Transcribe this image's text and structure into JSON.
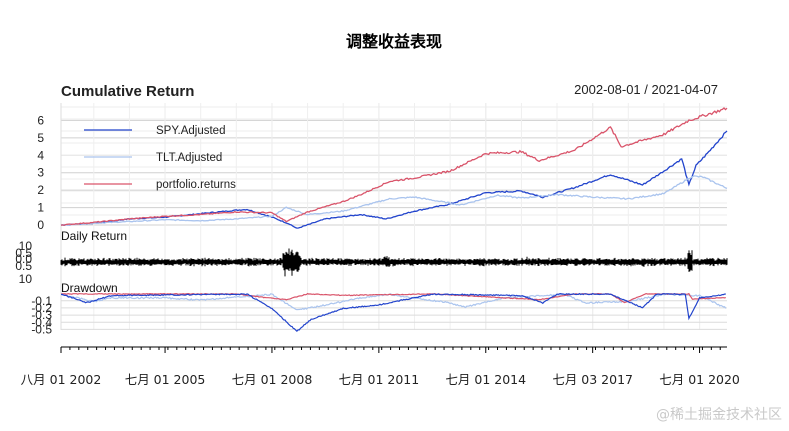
{
  "chart_data": {
    "type": "line",
    "title": "调整收益表现",
    "date_range": "2002-08-01 / 2021-04-07",
    "x_tick_labels": [
      "八月 01 2002",
      "七月 01 2005",
      "七月 01 2008",
      "七月 01 2011",
      "七月 01 2014",
      "七月 03 2017",
      "七月 01 2020"
    ],
    "x_tick_dates": [
      2002.58,
      2005.5,
      2008.5,
      2011.5,
      2014.5,
      2017.5,
      2020.5
    ],
    "x_range": [
      2002.58,
      2021.27
    ],
    "panels": [
      {
        "name": "cumulative",
        "label": "Cumulative Return",
        "ylim": [
          0,
          7
        ],
        "yticks": [
          "0",
          "1",
          "2",
          "3",
          "4",
          "5",
          "6"
        ],
        "legend": {
          "placement": "top-left"
        },
        "series": [
          {
            "name": "SPY.Adjusted",
            "color": "#2244cc",
            "x": [
              2002.58,
              2003.5,
              2004.5,
              2005.5,
              2006.5,
              2007.5,
              2007.8,
              2008.5,
              2009.0,
              2009.2,
              2010.0,
              2011.0,
              2011.7,
              2012.5,
              2013.5,
              2014.5,
              2015.5,
              2016.1,
              2017.0,
              2018.0,
              2018.9,
              2019.5,
              2020.0,
              2020.2,
              2020.4,
              2020.8,
              2021.27
            ],
            "values": [
              0.0,
              0.1,
              0.35,
              0.45,
              0.65,
              0.85,
              0.9,
              0.45,
              0.05,
              -0.2,
              0.35,
              0.6,
              0.35,
              0.8,
              1.2,
              1.85,
              1.95,
              1.6,
              2.15,
              2.9,
              2.3,
              3.1,
              3.8,
              2.3,
              3.4,
              4.3,
              5.4
            ]
          },
          {
            "name": "TLT.Adjusted",
            "color": "#aac4ee",
            "x": [
              2002.58,
              2003.5,
              2004.5,
              2005.5,
              2006.5,
              2007.5,
              2008.5,
              2008.9,
              2009.5,
              2010.5,
              2011.8,
              2012.5,
              2013.8,
              2014.8,
              2015.5,
              2016.5,
              2017.5,
              2018.5,
              2019.5,
              2020.3,
              2020.6,
              2021.27
            ],
            "values": [
              0.0,
              0.1,
              0.2,
              0.3,
              0.25,
              0.35,
              0.5,
              1.0,
              0.6,
              0.8,
              1.5,
              1.6,
              1.15,
              1.7,
              1.55,
              1.75,
              1.6,
              1.5,
              1.8,
              2.8,
              2.75,
              2.1
            ]
          },
          {
            "name": "portfolio.returns",
            "color": "#d9546a",
            "x": [
              2002.58,
              2003.5,
              2004.5,
              2005.5,
              2006.5,
              2007.5,
              2008.5,
              2008.9,
              2009.5,
              2010.5,
              2011.0,
              2011.8,
              2012.5,
              2013.5,
              2014.5,
              2015.5,
              2016.0,
              2017.0,
              2018.0,
              2018.3,
              2019.5,
              2020.2,
              2020.5,
              2021.27
            ],
            "values": [
              0.0,
              0.15,
              0.35,
              0.5,
              0.6,
              0.75,
              0.7,
              0.2,
              0.75,
              1.35,
              1.75,
              2.5,
              2.7,
              3.1,
              4.1,
              4.2,
              3.7,
              4.3,
              5.6,
              4.5,
              5.2,
              6.0,
              6.2,
              6.7
            ]
          }
        ]
      },
      {
        "name": "daily",
        "label": "Daily Return",
        "ylim": [
          -10,
          10
        ],
        "yticks": [
          "10",
          "0.5",
          "0.0",
          "0.5",
          "10"
        ]
      },
      {
        "name": "drawdown",
        "label": "Drawdown",
        "ylim": [
          -0.55,
          0.05
        ],
        "yticks": [
          "-0.1",
          "-0.2",
          "-0.3",
          "-0.4",
          "-0.5"
        ]
      }
    ]
  },
  "watermark": "@稀土掘金技术社区"
}
